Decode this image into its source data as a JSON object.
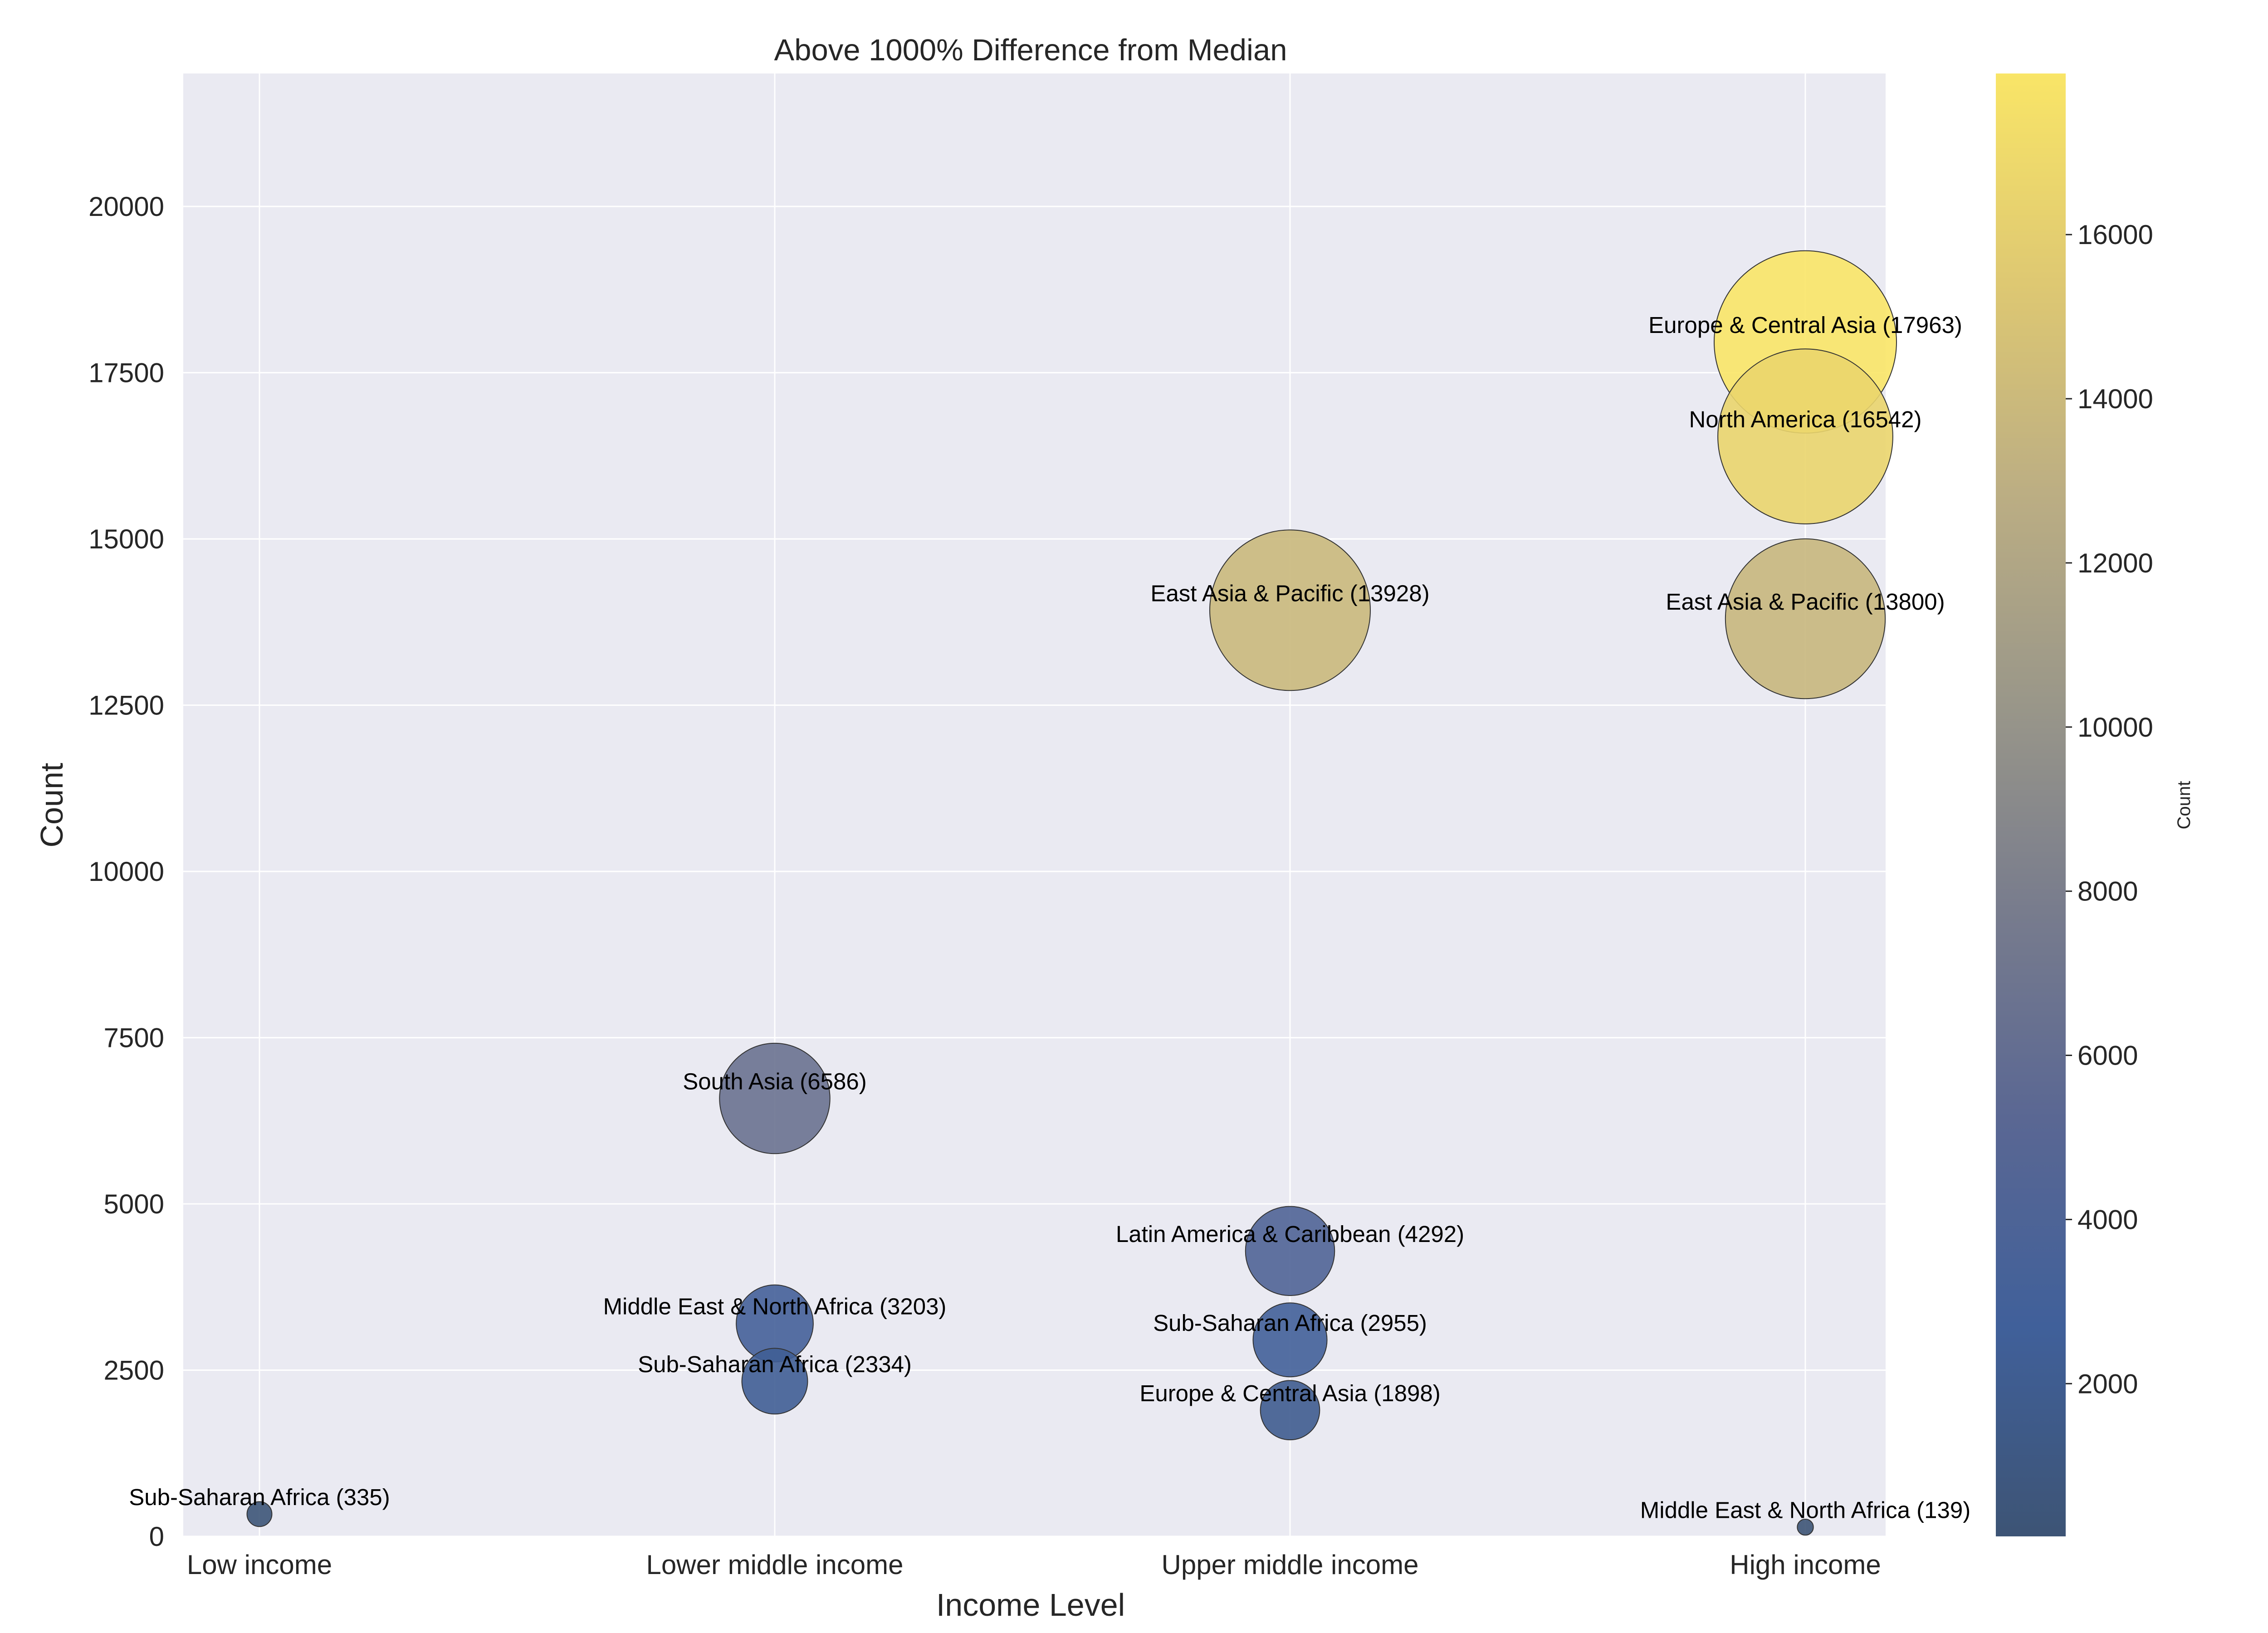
{
  "chart_data": {
    "type": "scatter",
    "title": "Above 1000% Difference from Median",
    "xlabel": "Income Level",
    "ylabel": "Count",
    "categories": [
      "Low income",
      "Lower middle income",
      "Upper middle income",
      "High income"
    ],
    "ylim": [
      0,
      22000
    ],
    "yticks": [
      0,
      2500,
      5000,
      7500,
      10000,
      12500,
      15000,
      17500,
      20000
    ],
    "grid": true,
    "points": [
      {
        "x": "Low income",
        "y": 335,
        "label": "Sub-Saharan Africa (335)"
      },
      {
        "x": "Lower middle income",
        "y": 6586,
        "label": "South Asia (6586)"
      },
      {
        "x": "Lower middle income",
        "y": 3203,
        "label": "Middle East & North Africa (3203)"
      },
      {
        "x": "Lower middle income",
        "y": 2334,
        "label": "Sub-Saharan Africa (2334)"
      },
      {
        "x": "Upper middle income",
        "y": 13928,
        "label": "East Asia & Pacific (13928)"
      },
      {
        "x": "Upper middle income",
        "y": 4292,
        "label": "Latin America & Caribbean (4292)"
      },
      {
        "x": "Upper middle income",
        "y": 2955,
        "label": "Sub-Saharan Africa (2955)"
      },
      {
        "x": "Upper middle income",
        "y": 1898,
        "label": "Europe & Central Asia (1898)"
      },
      {
        "x": "High income",
        "y": 17963,
        "label": "Europe & Central Asia (17963)"
      },
      {
        "x": "High income",
        "y": 16542,
        "label": "North America (16542)"
      },
      {
        "x": "High income",
        "y": 13800,
        "label": "East Asia & Pacific (13800)"
      },
      {
        "x": "High income",
        "y": 139,
        "label": "Middle East & North Africa (139)"
      }
    ],
    "colorbar": {
      "label": "Count",
      "min": 139,
      "max": 17963,
      "ticks": [
        2000,
        4000,
        6000,
        8000,
        10000,
        12000,
        14000,
        16000
      ],
      "colors": [
        "#3d5475",
        "#40609a",
        "#5a6793",
        "#787c8d",
        "#9a9789",
        "#bcae83",
        "#dec872",
        "#f9e567"
      ]
    }
  }
}
